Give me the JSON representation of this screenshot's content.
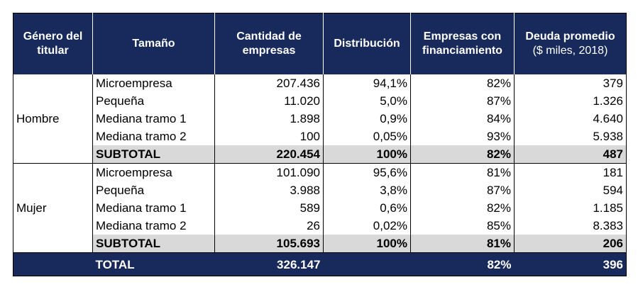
{
  "header": {
    "columns": [
      "Género del titular",
      "Tamaño",
      "Cantidad de empresas",
      "Distribución",
      "Empresas con financiamiento",
      "Deuda promedio"
    ],
    "unit": "($ miles, 2018)"
  },
  "groups": [
    {
      "name": "Hombre",
      "rows": [
        [
          "Microempresa",
          "207.436",
          "94,1%",
          "82%",
          "379"
        ],
        [
          "Pequeña",
          "11.020",
          "5,0%",
          "87%",
          "1.326"
        ],
        [
          "Mediana tramo 1",
          "1.898",
          "0,9%",
          "84%",
          "4.640"
        ],
        [
          "Mediana tramo 2",
          "100",
          "0,05%",
          "93%",
          "5.938"
        ]
      ],
      "subtotal": [
        "SUBTOTAL",
        "220.454",
        "100%",
        "82%",
        "487"
      ]
    },
    {
      "name": "Mujer",
      "rows": [
        [
          "Microempresa",
          "101.090",
          "95,6%",
          "81%",
          "181"
        ],
        [
          "Pequeña",
          "3.988",
          "3,8%",
          "87%",
          "594"
        ],
        [
          "Mediana tramo 1",
          "589",
          "0,6%",
          "82%",
          "1.185"
        ],
        [
          "Mediana tramo 2",
          "26",
          "0,02%",
          "85%",
          "8.383"
        ]
      ],
      "subtotal": [
        "SUBTOTAL",
        "105.693",
        "100%",
        "81%",
        "206"
      ]
    }
  ],
  "total": {
    "label": "TOTAL",
    "cantidad": "326.147",
    "financiamiento": "82%",
    "deuda": "396"
  }
}
